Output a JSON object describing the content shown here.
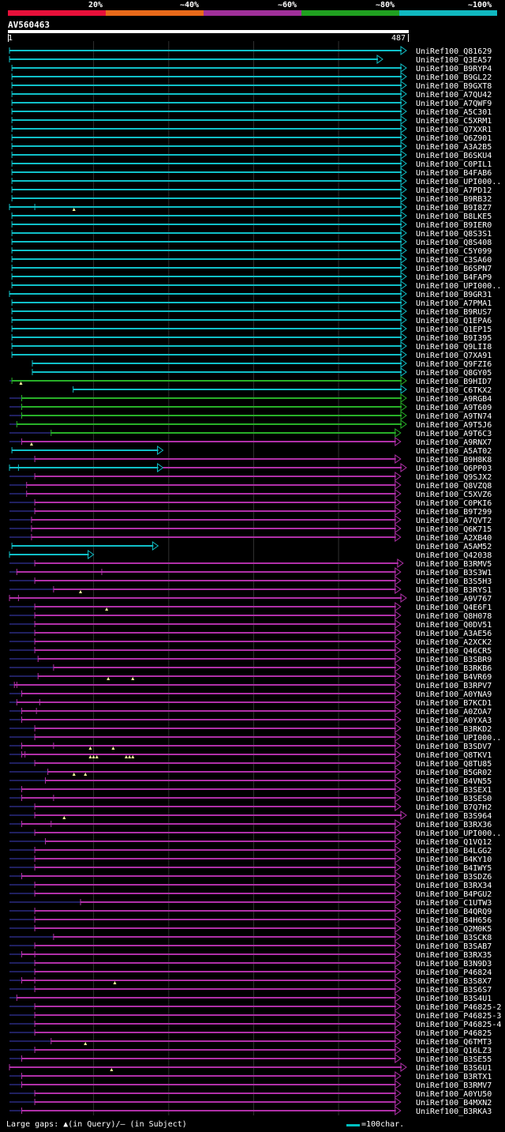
{
  "legend": {
    "bands": [
      {
        "label": "20%",
        "color": "#e8103a"
      },
      {
        "label": "~40%",
        "color": "#e86a1a"
      },
      {
        "label": "~60%",
        "color": "#a0309a"
      },
      {
        "label": "~80%",
        "color": "#20a020"
      },
      {
        "label": "~100%",
        "color": "#10b8c0"
      }
    ]
  },
  "query": {
    "id": "AV560463",
    "start": "1",
    "end": "487",
    "length": 487
  },
  "colors": {
    "cyan": "#10c0c8",
    "green": "#28b028",
    "purple": "#b030a8",
    "thin": "#202060",
    "gap": "#ffffa0"
  },
  "hits": [
    {
      "name": "UniRef100_Q81629",
      "c": "cyan",
      "s": 1,
      "e": 487
    },
    {
      "name": "UniRef100_Q3EA57",
      "c": "cyan",
      "s": 1,
      "e": 458
    },
    {
      "name": "UniRef100_B9RYP4",
      "c": "cyan",
      "s": 4,
      "e": 487
    },
    {
      "name": "UniRef100_B9GL22",
      "c": "cyan",
      "s": 4,
      "e": 487
    },
    {
      "name": "UniRef100_B9GXT8",
      "c": "cyan",
      "s": 4,
      "e": 487
    },
    {
      "name": "UniRef100_A7QU42",
      "c": "cyan",
      "s": 4,
      "e": 487
    },
    {
      "name": "UniRef100_A7QWF9",
      "c": "cyan",
      "s": 4,
      "e": 487
    },
    {
      "name": "UniRef100_A5C301",
      "c": "cyan",
      "s": 4,
      "e": 487
    },
    {
      "name": "UniRef100_C5XRM1",
      "c": "cyan",
      "s": 4,
      "e": 487
    },
    {
      "name": "UniRef100_Q7XXR1",
      "c": "cyan",
      "s": 4,
      "e": 487
    },
    {
      "name": "UniRef100_Q6Z901",
      "c": "cyan",
      "s": 4,
      "e": 487
    },
    {
      "name": "UniRef100_A3A2B5",
      "c": "cyan",
      "s": 4,
      "e": 487
    },
    {
      "name": "UniRef100_B6SKU4",
      "c": "cyan",
      "s": 4,
      "e": 487
    },
    {
      "name": "UniRef100_C0PIL1",
      "c": "cyan",
      "s": 4,
      "e": 487
    },
    {
      "name": "UniRef100_B4FAB6",
      "c": "cyan",
      "s": 4,
      "e": 487
    },
    {
      "name": "UniRef100_UPI000..",
      "c": "cyan",
      "s": 4,
      "e": 487
    },
    {
      "name": "UniRef100_A7PD12",
      "c": "cyan",
      "s": 4,
      "e": 487
    },
    {
      "name": "UniRef100_B9RB32",
      "c": "cyan",
      "s": 4,
      "e": 487
    },
    {
      "name": "UniRef100_B9I8Z7",
      "c": "cyan",
      "s": 1,
      "e": 487,
      "gaps": [
        80
      ],
      "ins": [
        32
      ]
    },
    {
      "name": "UniRef100_B8LKE5",
      "c": "cyan",
      "s": 4,
      "e": 487
    },
    {
      "name": "UniRef100_B9IER0",
      "c": "cyan",
      "s": 4,
      "e": 487
    },
    {
      "name": "UniRef100_Q8S3S1",
      "c": "cyan",
      "s": 4,
      "e": 487
    },
    {
      "name": "UniRef100_Q8S408",
      "c": "cyan",
      "s": 4,
      "e": 487
    },
    {
      "name": "UniRef100_C5Y099",
      "c": "cyan",
      "s": 4,
      "e": 487
    },
    {
      "name": "UniRef100_C3SA60",
      "c": "cyan",
      "s": 4,
      "e": 487
    },
    {
      "name": "UniRef100_B6SPN7",
      "c": "cyan",
      "s": 4,
      "e": 487
    },
    {
      "name": "UniRef100_B4FAP9",
      "c": "cyan",
      "s": 4,
      "e": 487
    },
    {
      "name": "UniRef100_UPI000..",
      "c": "cyan",
      "s": 4,
      "e": 487
    },
    {
      "name": "UniRef100_B9GR31",
      "c": "cyan",
      "s": 1,
      "e": 487
    },
    {
      "name": "UniRef100_A7PMA1",
      "c": "cyan",
      "s": 4,
      "e": 487
    },
    {
      "name": "UniRef100_B9RUS7",
      "c": "cyan",
      "s": 4,
      "e": 487
    },
    {
      "name": "UniRef100_Q1EPA6",
      "c": "cyan",
      "s": 4,
      "e": 487
    },
    {
      "name": "UniRef100_Q1EP15",
      "c": "cyan",
      "s": 4,
      "e": 487
    },
    {
      "name": "UniRef100_B9I395",
      "c": "cyan",
      "s": 4,
      "e": 487
    },
    {
      "name": "UniRef100_Q9LII8",
      "c": "cyan",
      "s": 4,
      "e": 487
    },
    {
      "name": "UniRef100_Q7XA91",
      "c": "cyan",
      "s": 4,
      "e": 487
    },
    {
      "name": "UniRef100_Q9FZI6",
      "c": "cyan",
      "s": 29,
      "e": 487
    },
    {
      "name": "UniRef100_Q8GY05",
      "c": "cyan",
      "s": 29,
      "e": 487
    },
    {
      "name": "UniRef100_B9HID7",
      "c": "green",
      "s": 4,
      "e": 487,
      "gaps": [
        15
      ],
      "thin": [
        1,
        4
      ]
    },
    {
      "name": "UniRef100_C6TKX2",
      "c": "cyan",
      "s": 79,
      "e": 487
    },
    {
      "name": "UniRef100_A9RGB4",
      "c": "green",
      "s": 16,
      "e": 487,
      "thin": [
        1,
        16
      ]
    },
    {
      "name": "UniRef100_A9T609",
      "c": "green",
      "s": 16,
      "e": 487,
      "thin": [
        1,
        16
      ]
    },
    {
      "name": "UniRef100_A9TN74",
      "c": "green",
      "s": 16,
      "e": 487,
      "thin": [
        1,
        16
      ]
    },
    {
      "name": "UniRef100_A9T5J6",
      "c": "green",
      "s": 10,
      "e": 487,
      "thin": [
        1,
        10
      ]
    },
    {
      "name": "UniRef100_A9T6C3",
      "c": "green",
      "s": 52,
      "e": 480,
      "thin": [
        1,
        52
      ]
    },
    {
      "name": "UniRef100_A9RNX7",
      "c": "purple",
      "s": 16,
      "e": 480,
      "gaps": [
        28
      ],
      "thin": [
        1,
        16
      ]
    },
    {
      "name": "UniRef100_A5AT02",
      "c": "cyan",
      "s": 4,
      "e": 189
    },
    {
      "name": "UniRef100_B9H8K8",
      "c": "purple",
      "s": 32,
      "e": 480,
      "thin": [
        1,
        32
      ]
    },
    {
      "name": "UniRef100_Q6PP03",
      "c": "cyan",
      "s": 1,
      "e": 189,
      "ins": [
        12
      ],
      "purple": [
        189,
        487
      ]
    },
    {
      "name": "UniRef100_Q9SJX2",
      "c": "purple",
      "s": 32,
      "e": 480,
      "thin": [
        1,
        32
      ]
    },
    {
      "name": "UniRef100_Q8VZQ8",
      "c": "purple",
      "s": 22,
      "e": 480,
      "thin": [
        1,
        22
      ]
    },
    {
      "name": "UniRef100_C5XVZ6",
      "c": "purple",
      "s": 22,
      "e": 480,
      "thin": [
        1,
        22
      ]
    },
    {
      "name": "UniRef100_C0PKI6",
      "c": "purple",
      "s": 32,
      "e": 480,
      "thin": [
        1,
        32
      ]
    },
    {
      "name": "UniRef100_B9T299",
      "c": "purple",
      "s": 32,
      "e": 480,
      "thin": [
        1,
        32
      ]
    },
    {
      "name": "UniRef100_A7QVT2",
      "c": "purple",
      "s": 28,
      "e": 480,
      "thin": [
        1,
        28
      ]
    },
    {
      "name": "UniRef100_Q6K715",
      "c": "purple",
      "s": 28,
      "e": 480,
      "thin": [
        1,
        28
      ]
    },
    {
      "name": "UniRef100_A2XB40",
      "c": "purple",
      "s": 28,
      "e": 480,
      "thin": [
        1,
        28
      ]
    },
    {
      "name": "UniRef100_A5AM52",
      "c": "cyan",
      "s": 4,
      "e": 183
    },
    {
      "name": "UniRef100_Q42038",
      "c": "cyan",
      "s": 1,
      "e": 104
    },
    {
      "name": "UniRef100_B3RMV5",
      "c": "purple",
      "s": 32,
      "e": 483,
      "thin": [
        1,
        32
      ]
    },
    {
      "name": "UniRef100_B3S3W1",
      "c": "purple",
      "s": 10,
      "e": 480,
      "ins": [
        114
      ],
      "thin": [
        1,
        10
      ]
    },
    {
      "name": "UniRef100_B3S5H3",
      "c": "purple",
      "s": 32,
      "e": 480,
      "thin": [
        1,
        32
      ]
    },
    {
      "name": "UniRef100_B3RYS1",
      "c": "purple",
      "s": 55,
      "e": 480,
      "gaps": [
        88
      ],
      "thin": [
        1,
        55
      ]
    },
    {
      "name": "UniRef100_A9V767",
      "c": "purple",
      "s": 1,
      "e": 487,
      "ins": [
        12
      ],
      "thin": [
        12,
        24
      ]
    },
    {
      "name": "UniRef100_Q4E6F1",
      "c": "purple",
      "s": 32,
      "e": 480,
      "gaps": [
        120
      ],
      "thin": [
        1,
        32
      ]
    },
    {
      "name": "UniRef100_Q8H078",
      "c": "purple",
      "s": 32,
      "e": 480,
      "thin": [
        1,
        32
      ]
    },
    {
      "name": "UniRef100_Q0DV51",
      "c": "purple",
      "s": 32,
      "e": 480,
      "thin": [
        1,
        32
      ]
    },
    {
      "name": "UniRef100_A3AE56",
      "c": "purple",
      "s": 32,
      "e": 480,
      "thin": [
        1,
        32
      ]
    },
    {
      "name": "UniRef100_A2XCK2",
      "c": "purple",
      "s": 32,
      "e": 480,
      "thin": [
        1,
        32
      ]
    },
    {
      "name": "UniRef100_Q46CR5",
      "c": "purple",
      "s": 32,
      "e": 480,
      "thin": [
        1,
        32
      ]
    },
    {
      "name": "UniRef100_B3SBR9",
      "c": "purple",
      "s": 36,
      "e": 480,
      "thin": [
        1,
        36
      ]
    },
    {
      "name": "UniRef100_B3RKB6",
      "c": "purple",
      "s": 55,
      "e": 480,
      "thin": [
        1,
        55
      ]
    },
    {
      "name": "UniRef100_B4VR69",
      "c": "purple",
      "s": 36,
      "e": 480,
      "gaps": [
        122,
        152
      ],
      "thin": [
        1,
        36
      ]
    },
    {
      "name": "UniRef100_B3RPV7",
      "c": "purple",
      "s": 7,
      "e": 480,
      "ins": [
        10
      ],
      "thin": [
        1,
        7
      ]
    },
    {
      "name": "UniRef100_A0YNA9",
      "c": "purple",
      "s": 16,
      "e": 480,
      "thin": [
        1,
        16
      ]
    },
    {
      "name": "UniRef100_B7KCD1",
      "c": "purple",
      "s": 10,
      "e": 480,
      "ins": [
        38
      ],
      "thin": [
        1,
        10
      ]
    },
    {
      "name": "UniRef100_A0ZOA7",
      "c": "purple",
      "s": 16,
      "e": 480,
      "ins": [
        34
      ],
      "thin": [
        1,
        16
      ]
    },
    {
      "name": "UniRef100_A0YXA3",
      "c": "purple",
      "s": 16,
      "e": 480,
      "thin": [
        1,
        16
      ]
    },
    {
      "name": "UniRef100_B3RKD2",
      "c": "purple",
      "s": 32,
      "e": 480,
      "thin": [
        1,
        32
      ]
    },
    {
      "name": "UniRef100_UPI000..",
      "c": "purple",
      "s": 32,
      "e": 480,
      "thin": [
        1,
        32
      ]
    },
    {
      "name": "UniRef100_B3SDV7",
      "c": "purple",
      "s": 16,
      "e": 480,
      "gaps": [
        100,
        128
      ],
      "ins": [
        55
      ],
      "thin": [
        1,
        16
      ]
    },
    {
      "name": "UniRef100_Q8TKV1",
      "c": "purple",
      "s": 16,
      "e": 480,
      "gaps": [
        100,
        104,
        108,
        144,
        148,
        152
      ],
      "ins": [
        20
      ],
      "thin": [
        1,
        16
      ]
    },
    {
      "name": "UniRef100_Q8TU85",
      "c": "purple",
      "s": 32,
      "e": 480,
      "thin": [
        1,
        32
      ]
    },
    {
      "name": "UniRef100_B5GR02",
      "c": "purple",
      "s": 48,
      "e": 480,
      "gaps": [
        80,
        94
      ],
      "thin": [
        1,
        48
      ]
    },
    {
      "name": "UniRef100_B4VN55",
      "c": "purple",
      "s": 45,
      "e": 480,
      "thin": [
        1,
        45
      ]
    },
    {
      "name": "UniRef100_B3SEX1",
      "c": "purple",
      "s": 16,
      "e": 480,
      "thin": [
        1,
        16
      ]
    },
    {
      "name": "UniRef100_B3SES0",
      "c": "purple",
      "s": 16,
      "e": 480,
      "ins": [
        55
      ],
      "thin": [
        1,
        16
      ]
    },
    {
      "name": "UniRef100_B7Q7H2",
      "c": "purple",
      "s": 32,
      "e": 480,
      "thin": [
        1,
        32
      ]
    },
    {
      "name": "UniRef100_B3S964",
      "c": "purple",
      "s": 32,
      "e": 487,
      "gaps": [
        68
      ],
      "thin": [
        1,
        32
      ]
    },
    {
      "name": "UniRef100_B3RX36",
      "c": "purple",
      "s": 16,
      "e": 480,
      "ins": [
        52
      ],
      "thin": [
        1,
        16
      ]
    },
    {
      "name": "UniRef100_UPI000..",
      "c": "purple",
      "s": 32,
      "e": 480,
      "thin": [
        1,
        32
      ]
    },
    {
      "name": "UniRef100_Q1VQ12",
      "c": "purple",
      "s": 45,
      "e": 480,
      "thin": [
        1,
        45
      ]
    },
    {
      "name": "UniRef100_B4LGG2",
      "c": "purple",
      "s": 32,
      "e": 480,
      "thin": [
        1,
        32
      ]
    },
    {
      "name": "UniRef100_B4KY10",
      "c": "purple",
      "s": 32,
      "e": 480,
      "thin": [
        1,
        32
      ]
    },
    {
      "name": "UniRef100_B4IWY5",
      "c": "purple",
      "s": 32,
      "e": 480,
      "thin": [
        1,
        32
      ]
    },
    {
      "name": "UniRef100_B3SDZ6",
      "c": "purple",
      "s": 16,
      "e": 480,
      "thin": [
        1,
        16
      ]
    },
    {
      "name": "UniRef100_B3RX34",
      "c": "purple",
      "s": 32,
      "e": 480,
      "thin": [
        1,
        32
      ]
    },
    {
      "name": "UniRef100_B4PGU2",
      "c": "purple",
      "s": 32,
      "e": 480,
      "thin": [
        1,
        32
      ]
    },
    {
      "name": "UniRef100_C1UTW3",
      "c": "purple",
      "s": 88,
      "e": 480,
      "thin": [
        1,
        88
      ]
    },
    {
      "name": "UniRef100_B4QRQ9",
      "c": "purple",
      "s": 32,
      "e": 480,
      "thin": [
        1,
        32
      ]
    },
    {
      "name": "UniRef100_B4H656",
      "c": "purple",
      "s": 32,
      "e": 480,
      "thin": [
        1,
        32
      ]
    },
    {
      "name": "UniRef100_Q2M0K5",
      "c": "purple",
      "s": 32,
      "e": 480,
      "thin": [
        1,
        32
      ]
    },
    {
      "name": "UniRef100_B3SCK8",
      "c": "purple",
      "s": 55,
      "e": 480,
      "thin": [
        1,
        55
      ]
    },
    {
      "name": "UniRef100_B3SAB7",
      "c": "purple",
      "s": 32,
      "e": 480,
      "thin": [
        1,
        32
      ]
    },
    {
      "name": "UniRef100_B3RX35",
      "c": "purple",
      "s": 16,
      "e": 480,
      "ins": [
        32
      ],
      "thin": [
        1,
        16
      ]
    },
    {
      "name": "UniRef100_B3N9D3",
      "c": "purple",
      "s": 32,
      "e": 480,
      "thin": [
        1,
        32
      ]
    },
    {
      "name": "UniRef100_P46824",
      "c": "purple",
      "s": 32,
      "e": 480,
      "thin": [
        1,
        32
      ]
    },
    {
      "name": "UniRef100_B3S8X7",
      "c": "purple",
      "s": 16,
      "e": 480,
      "gaps": [
        130
      ],
      "ins": [
        32
      ],
      "thin": [
        1,
        16
      ]
    },
    {
      "name": "UniRef100_B3S6S7",
      "c": "purple",
      "s": 32,
      "e": 480,
      "thin": [
        1,
        32
      ]
    },
    {
      "name": "UniRef100_B3S4U1",
      "c": "purple",
      "s": 10,
      "e": 480,
      "thin": [
        1,
        10
      ]
    },
    {
      "name": "UniRef100_P46825-2",
      "c": "purple",
      "s": 32,
      "e": 480,
      "thin": [
        1,
        32
      ]
    },
    {
      "name": "UniRef100_P46825-3",
      "c": "purple",
      "s": 32,
      "e": 480,
      "thin": [
        1,
        32
      ]
    },
    {
      "name": "UniRef100_P46825-4",
      "c": "purple",
      "s": 32,
      "e": 480,
      "thin": [
        1,
        32
      ]
    },
    {
      "name": "UniRef100_P46825",
      "c": "purple",
      "s": 32,
      "e": 480,
      "thin": [
        1,
        32
      ]
    },
    {
      "name": "UniRef100_Q6TMT3",
      "c": "purple",
      "s": 52,
      "e": 480,
      "gaps": [
        94
      ],
      "thin": [
        1,
        52
      ]
    },
    {
      "name": "UniRef100_Q16LZ3",
      "c": "purple",
      "s": 32,
      "e": 480,
      "thin": [
        1,
        32
      ]
    },
    {
      "name": "UniRef100_B3SE55",
      "c": "purple",
      "s": 16,
      "e": 480,
      "thin": [
        1,
        16
      ]
    },
    {
      "name": "UniRef100_B3S6U1",
      "c": "purple",
      "s": 1,
      "e": 487,
      "gaps": [
        126
      ],
      "thin": [
        1,
        1
      ]
    },
    {
      "name": "UniRef100_B3RTX1",
      "c": "purple",
      "s": 16,
      "e": 480,
      "thin": [
        1,
        16
      ]
    },
    {
      "name": "UniRef100_B3RMV7",
      "c": "purple",
      "s": 16,
      "e": 480,
      "thin": [
        1,
        16
      ]
    },
    {
      "name": "UniRef100_A0YU50",
      "c": "purple",
      "s": 32,
      "e": 480,
      "thin": [
        1,
        32
      ]
    },
    {
      "name": "UniRef100_B4MXN2",
      "c": "purple",
      "s": 32,
      "e": 480,
      "thin": [
        1,
        32
      ]
    },
    {
      "name": "UniRef100_B3RKA3",
      "c": "purple",
      "s": 16,
      "e": 480,
      "thin": [
        1,
        16
      ]
    }
  ],
  "footer": {
    "gaps_label": "Large gaps: ▲(in Query)/– (in Subject)",
    "scale_label": "=100char."
  }
}
